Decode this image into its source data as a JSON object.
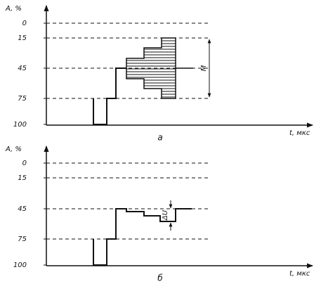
{
  "panels": [
    {
      "y_label": "A, %",
      "ticks": [
        "0",
        "15",
        "45",
        "75",
        "100"
      ],
      "x_label": "t, мкс",
      "caption": "a",
      "annotation": "M"
    },
    {
      "y_label": "A, %",
      "ticks": [
        "0",
        "15",
        "45",
        "75",
        "100"
      ],
      "x_label": "t, мкс",
      "caption": "б",
      "annotation": "ΔU"
    }
  ]
}
